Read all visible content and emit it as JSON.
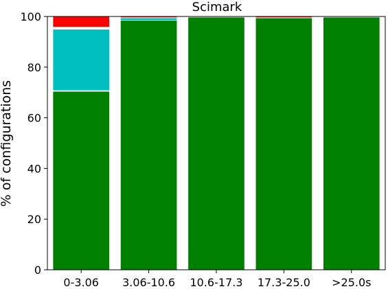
{
  "chart_data": {
    "type": "bar",
    "stacked": true,
    "title": "Scimark",
    "xlabel": "",
    "ylabel": "% of configurations",
    "categories": [
      "0-3.06",
      "3.06-10.6",
      "10.6-17.3",
      "17.3-25.0",
      ">25.0s"
    ],
    "ylim": [
      0,
      100
    ],
    "yticks": [
      0,
      20,
      40,
      60,
      80,
      100
    ],
    "grid": false,
    "series": [
      {
        "color": "#008000",
        "values": [
          70.5,
          98.5,
          99.8,
          99.5,
          99.8
        ]
      },
      {
        "color": "#ffffff",
        "values": [
          0.2,
          0.0,
          0.0,
          0.0,
          0.0
        ]
      },
      {
        "color": "#00bfbf",
        "values": [
          24.3,
          1.0,
          0.0,
          0.0,
          0.0
        ]
      },
      {
        "color": "#ffffff",
        "values": [
          0.8,
          0.0,
          0.0,
          0.0,
          0.0
        ]
      },
      {
        "color": "#ff0000",
        "values": [
          4.2,
          0.5,
          0.2,
          0.5,
          0.2
        ]
      }
    ]
  }
}
